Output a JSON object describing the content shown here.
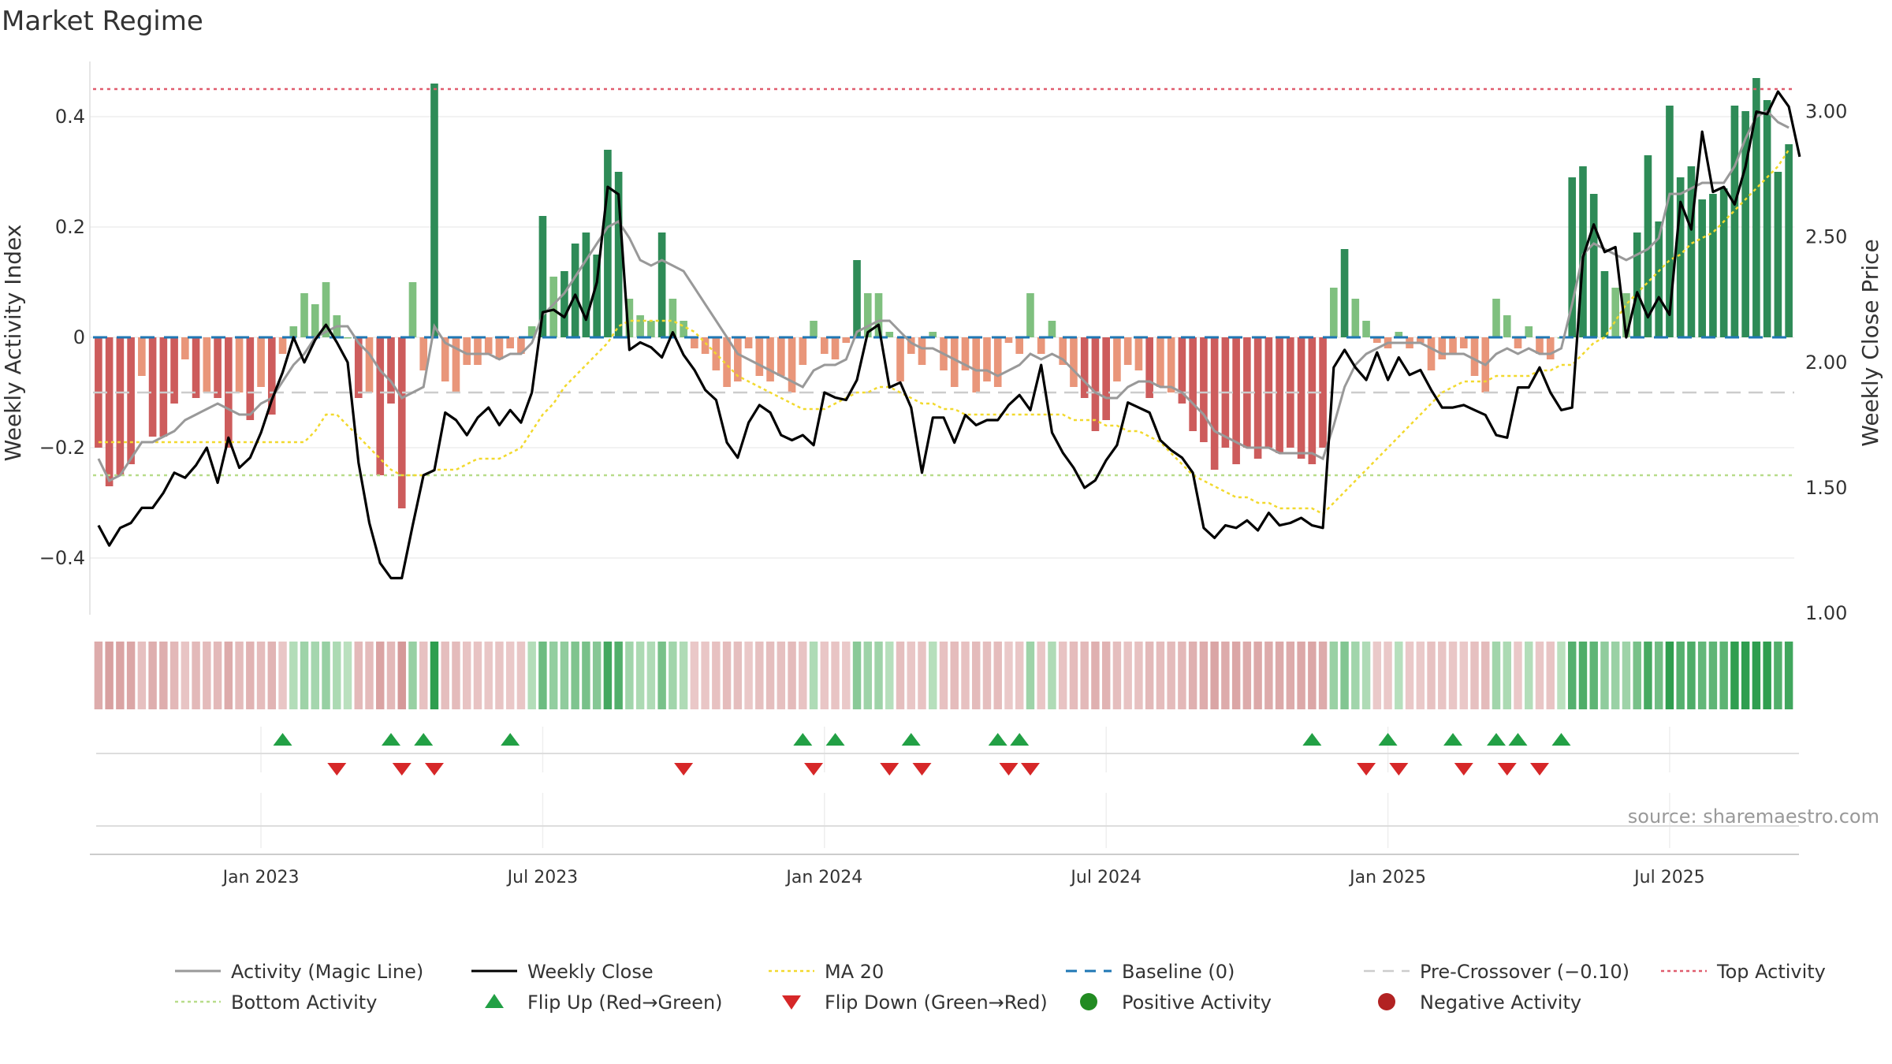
{
  "chart_data": {
    "type": "bar",
    "title": "Market Regime",
    "ylabel_left": "Weekly Activity Index",
    "ylabel_right": "Weekly Close Price",
    "source": "source: sharemaestro.com",
    "ylim_left": [
      -0.5,
      0.5
    ],
    "ylim_right": [
      1.0,
      3.2
    ],
    "yticks_left": [
      {
        "v": 0.4,
        "label": "0.4"
      },
      {
        "v": 0.2,
        "label": "0.2"
      },
      {
        "v": 0,
        "label": "0"
      },
      {
        "v": -0.2,
        "label": "−0.2"
      },
      {
        "v": -0.4,
        "label": "−0.4"
      }
    ],
    "yticks_right": [
      {
        "v": 3.0,
        "label": "3.00"
      },
      {
        "v": 2.5,
        "label": "2.50"
      },
      {
        "v": 2.0,
        "label": "2.00"
      },
      {
        "v": 1.5,
        "label": "1.50"
      },
      {
        "v": 1.0,
        "label": "1.00"
      }
    ],
    "xticks": [
      {
        "week": 15,
        "label": "Jan 2023"
      },
      {
        "week": 41,
        "label": "Jul 2023"
      },
      {
        "week": 67,
        "label": "Jan 2024"
      },
      {
        "week": 93,
        "label": "Jul 2024"
      },
      {
        "week": 119,
        "label": "Jan 2025"
      },
      {
        "week": 145,
        "label": "Jul 2025"
      }
    ],
    "reference_lines": {
      "baseline": 0,
      "pre_crossover": -0.1,
      "top_activity": 0.45,
      "bottom_activity": -0.25
    },
    "activity": [
      -0.2,
      -0.27,
      -0.25,
      -0.23,
      -0.07,
      -0.18,
      -0.18,
      -0.12,
      -0.04,
      -0.11,
      -0.1,
      -0.11,
      -0.2,
      -0.1,
      -0.15,
      -0.09,
      -0.14,
      -0.03,
      0.02,
      0.08,
      0.06,
      0.1,
      0.04,
      0.0,
      -0.11,
      -0.1,
      -0.25,
      -0.12,
      -0.31,
      0.1,
      -0.06,
      0.46,
      -0.08,
      -0.1,
      -0.05,
      -0.05,
      -0.03,
      -0.04,
      -0.02,
      -0.03,
      0.02,
      0.22,
      0.11,
      0.12,
      0.17,
      0.19,
      0.15,
      0.34,
      0.3,
      0.07,
      0.04,
      0.03,
      0.19,
      0.07,
      0.03,
      -0.02,
      -0.03,
      -0.06,
      -0.09,
      -0.08,
      -0.02,
      -0.07,
      -0.08,
      -0.07,
      -0.1,
      -0.05,
      0.03,
      -0.03,
      -0.04,
      -0.01,
      0.14,
      0.08,
      0.08,
      0.01,
      -0.08,
      -0.03,
      -0.05,
      0.01,
      -0.06,
      -0.09,
      -0.06,
      -0.1,
      -0.08,
      -0.09,
      -0.01,
      -0.03,
      0.08,
      -0.03,
      0.03,
      -0.05,
      -0.09,
      -0.11,
      -0.17,
      -0.15,
      -0.08,
      -0.05,
      -0.06,
      -0.11,
      -0.09,
      -0.1,
      -0.12,
      -0.17,
      -0.19,
      -0.24,
      -0.2,
      -0.23,
      -0.2,
      -0.22,
      -0.2,
      -0.21,
      -0.2,
      -0.22,
      -0.23,
      -0.2,
      0.09,
      0.16,
      0.07,
      0.03,
      -0.01,
      -0.02,
      0.01,
      -0.02,
      -0.01,
      -0.06,
      -0.04,
      -0.03,
      -0.02,
      -0.07,
      -0.1,
      0.07,
      0.04,
      -0.02,
      0.02,
      -0.03,
      -0.04,
      0.0,
      0.29,
      0.31,
      0.26,
      0.12,
      0.09,
      0.08,
      0.19,
      0.33,
      0.21,
      0.42,
      0.29,
      0.31,
      0.25,
      0.26,
      0.27,
      0.42,
      0.41,
      0.47,
      0.43,
      0.3,
      0.35
    ],
    "magic_line": [
      -0.22,
      -0.26,
      -0.25,
      -0.22,
      -0.19,
      -0.19,
      -0.18,
      -0.17,
      -0.15,
      -0.14,
      -0.13,
      -0.12,
      -0.13,
      -0.14,
      -0.14,
      -0.12,
      -0.11,
      -0.08,
      -0.05,
      -0.03,
      0.0,
      0.01,
      0.02,
      0.02,
      -0.01,
      -0.03,
      -0.06,
      -0.08,
      -0.11,
      -0.1,
      -0.09,
      0.02,
      -0.01,
      -0.02,
      -0.03,
      -0.03,
      -0.03,
      -0.04,
      -0.03,
      -0.03,
      -0.01,
      0.04,
      0.06,
      0.08,
      0.11,
      0.14,
      0.17,
      0.2,
      0.21,
      0.18,
      0.14,
      0.13,
      0.14,
      0.13,
      0.12,
      0.09,
      0.06,
      0.03,
      0.0,
      -0.03,
      -0.04,
      -0.05,
      -0.06,
      -0.07,
      -0.08,
      -0.09,
      -0.06,
      -0.05,
      -0.05,
      -0.04,
      0.01,
      0.02,
      0.03,
      0.03,
      0.01,
      -0.01,
      -0.02,
      -0.02,
      -0.03,
      -0.04,
      -0.05,
      -0.06,
      -0.06,
      -0.07,
      -0.06,
      -0.05,
      -0.03,
      -0.04,
      -0.03,
      -0.04,
      -0.06,
      -0.08,
      -0.1,
      -0.11,
      -0.11,
      -0.09,
      -0.08,
      -0.08,
      -0.09,
      -0.09,
      -0.1,
      -0.12,
      -0.14,
      -0.17,
      -0.18,
      -0.19,
      -0.2,
      -0.2,
      -0.2,
      -0.21,
      -0.21,
      -0.21,
      -0.21,
      -0.22,
      -0.16,
      -0.09,
      -0.05,
      -0.03,
      -0.02,
      -0.01,
      -0.01,
      -0.01,
      -0.01,
      -0.02,
      -0.03,
      -0.03,
      -0.03,
      -0.04,
      -0.05,
      -0.03,
      -0.02,
      -0.03,
      -0.02,
      -0.03,
      -0.03,
      -0.02,
      0.06,
      0.15,
      0.17,
      0.16,
      0.15,
      0.14,
      0.15,
      0.16,
      0.18,
      0.26,
      0.26,
      0.27,
      0.28,
      0.28,
      0.28,
      0.31,
      0.36,
      0.4,
      0.41,
      0.39,
      0.38
    ],
    "weekly_close": [
      1.35,
      1.27,
      1.34,
      1.36,
      1.42,
      1.42,
      1.48,
      1.56,
      1.54,
      1.59,
      1.66,
      1.52,
      1.7,
      1.58,
      1.62,
      1.72,
      1.85,
      1.96,
      2.1,
      2.0,
      2.09,
      2.15,
      2.08,
      2.0,
      1.6,
      1.36,
      1.2,
      1.14,
      1.14,
      1.35,
      1.55,
      1.57,
      1.8,
      1.77,
      1.71,
      1.78,
      1.82,
      1.75,
      1.81,
      1.76,
      1.88,
      2.2,
      2.21,
      2.18,
      2.27,
      2.17,
      2.32,
      2.7,
      2.67,
      2.05,
      2.08,
      2.06,
      2.02,
      2.12,
      2.03,
      1.97,
      1.89,
      1.85,
      1.68,
      1.62,
      1.76,
      1.83,
      1.8,
      1.71,
      1.69,
      1.71,
      1.67,
      1.88,
      1.86,
      1.85,
      1.93,
      2.12,
      2.15,
      1.9,
      1.92,
      1.82,
      1.56,
      1.78,
      1.78,
      1.68,
      1.79,
      1.75,
      1.77,
      1.77,
      1.83,
      1.87,
      1.81,
      1.99,
      1.72,
      1.64,
      1.58,
      1.5,
      1.53,
      1.61,
      1.67,
      1.84,
      1.82,
      1.8,
      1.69,
      1.65,
      1.62,
      1.56,
      1.34,
      1.3,
      1.35,
      1.34,
      1.37,
      1.33,
      1.4,
      1.35,
      1.36,
      1.38,
      1.35,
      1.34,
      1.98,
      2.05,
      1.98,
      1.93,
      2.04,
      1.93,
      2.02,
      1.95,
      1.97,
      1.89,
      1.82,
      1.82,
      1.83,
      1.81,
      1.79,
      1.71,
      1.7,
      1.9,
      1.9,
      1.98,
      1.88,
      1.81,
      1.82,
      2.42,
      2.55,
      2.44,
      2.46,
      2.1,
      2.28,
      2.18,
      2.26,
      2.19,
      2.64,
      2.53,
      2.92,
      2.68,
      2.7,
      2.63,
      2.78,
      3.0,
      2.99,
      3.08,
      3.02,
      2.82
    ],
    "ma20": [
      -0.19,
      -0.19,
      -0.19,
      -0.19,
      -0.19,
      -0.19,
      -0.19,
      -0.19,
      -0.19,
      -0.19,
      -0.19,
      -0.19,
      -0.19,
      -0.19,
      -0.19,
      -0.19,
      -0.19,
      -0.19,
      -0.19,
      -0.19,
      -0.17,
      -0.14,
      -0.14,
      -0.16,
      -0.18,
      -0.2,
      -0.22,
      -0.24,
      -0.25,
      -0.25,
      -0.25,
      -0.24,
      -0.24,
      -0.24,
      -0.23,
      -0.22,
      -0.22,
      -0.22,
      -0.21,
      -0.2,
      -0.17,
      -0.14,
      -0.12,
      -0.09,
      -0.07,
      -0.05,
      -0.03,
      -0.01,
      0.02,
      0.03,
      0.03,
      0.03,
      0.03,
      0.03,
      0.02,
      0.01,
      -0.01,
      -0.03,
      -0.05,
      -0.07,
      -0.08,
      -0.09,
      -0.1,
      -0.11,
      -0.12,
      -0.13,
      -0.13,
      -0.13,
      -0.12,
      -0.11,
      -0.1,
      -0.1,
      -0.09,
      -0.09,
      -0.1,
      -0.11,
      -0.12,
      -0.12,
      -0.13,
      -0.13,
      -0.14,
      -0.14,
      -0.14,
      -0.14,
      -0.14,
      -0.14,
      -0.14,
      -0.14,
      -0.14,
      -0.14,
      -0.15,
      -0.15,
      -0.15,
      -0.16,
      -0.16,
      -0.17,
      -0.17,
      -0.18,
      -0.19,
      -0.21,
      -0.23,
      -0.25,
      -0.26,
      -0.27,
      -0.28,
      -0.29,
      -0.29,
      -0.3,
      -0.3,
      -0.31,
      -0.31,
      -0.31,
      -0.31,
      -0.32,
      -0.3,
      -0.28,
      -0.26,
      -0.24,
      -0.22,
      -0.2,
      -0.18,
      -0.16,
      -0.14,
      -0.12,
      -0.1,
      -0.09,
      -0.08,
      -0.08,
      -0.08,
      -0.07,
      -0.07,
      -0.07,
      -0.07,
      -0.06,
      -0.06,
      -0.05,
      -0.05,
      -0.03,
      -0.01,
      0.0,
      0.03,
      0.06,
      0.08,
      0.1,
      0.12,
      0.14,
      0.15,
      0.17,
      0.18,
      0.19,
      0.21,
      0.23,
      0.25,
      0.27,
      0.29,
      0.31,
      0.34
    ],
    "flip_up_weeks": [
      17,
      27,
      30,
      38,
      65,
      68,
      75,
      83,
      85,
      112,
      119,
      125,
      129,
      131,
      135
    ],
    "flip_down_weeks": [
      22,
      28,
      31,
      54,
      66,
      73,
      76,
      84,
      86,
      117,
      120,
      126,
      130,
      133
    ],
    "regime_strip": "one cell per weekly bar, shaded by the sign and strength of the activity index",
    "colors": {
      "positive": "#2e8b57",
      "positive_light": "#7fc07f",
      "negative": "#cd5c5c",
      "negative_light": "#e9967a",
      "magic_line": "#999999",
      "weekly_close": "#000000",
      "ma20": "#f2d92e",
      "baseline": "#1f77b4",
      "pre_crossover": "#cccccc",
      "top_activity": "#e05c6e",
      "bottom_activity": "#b8dc8a",
      "flip_up": "#22a045",
      "flip_down": "#d62728"
    },
    "legend": [
      {
        "key": "activity_magic_line",
        "label": "Activity (Magic Line)"
      },
      {
        "key": "weekly_close",
        "label": "Weekly Close"
      },
      {
        "key": "ma20",
        "label": "MA 20"
      },
      {
        "key": "baseline",
        "label": "Baseline (0)"
      },
      {
        "key": "pre_crossover",
        "label": "Pre-Crossover (−0.10)"
      },
      {
        "key": "top_activity",
        "label": "Top Activity"
      },
      {
        "key": "bottom_activity",
        "label": "Bottom Activity"
      },
      {
        "key": "flip_up",
        "label": "Flip Up (Red→Green)"
      },
      {
        "key": "flip_down",
        "label": "Flip Down (Green→Red)"
      },
      {
        "key": "positive_activity",
        "label": "Positive Activity"
      },
      {
        "key": "negative_activity",
        "label": "Negative Activity"
      }
    ]
  }
}
